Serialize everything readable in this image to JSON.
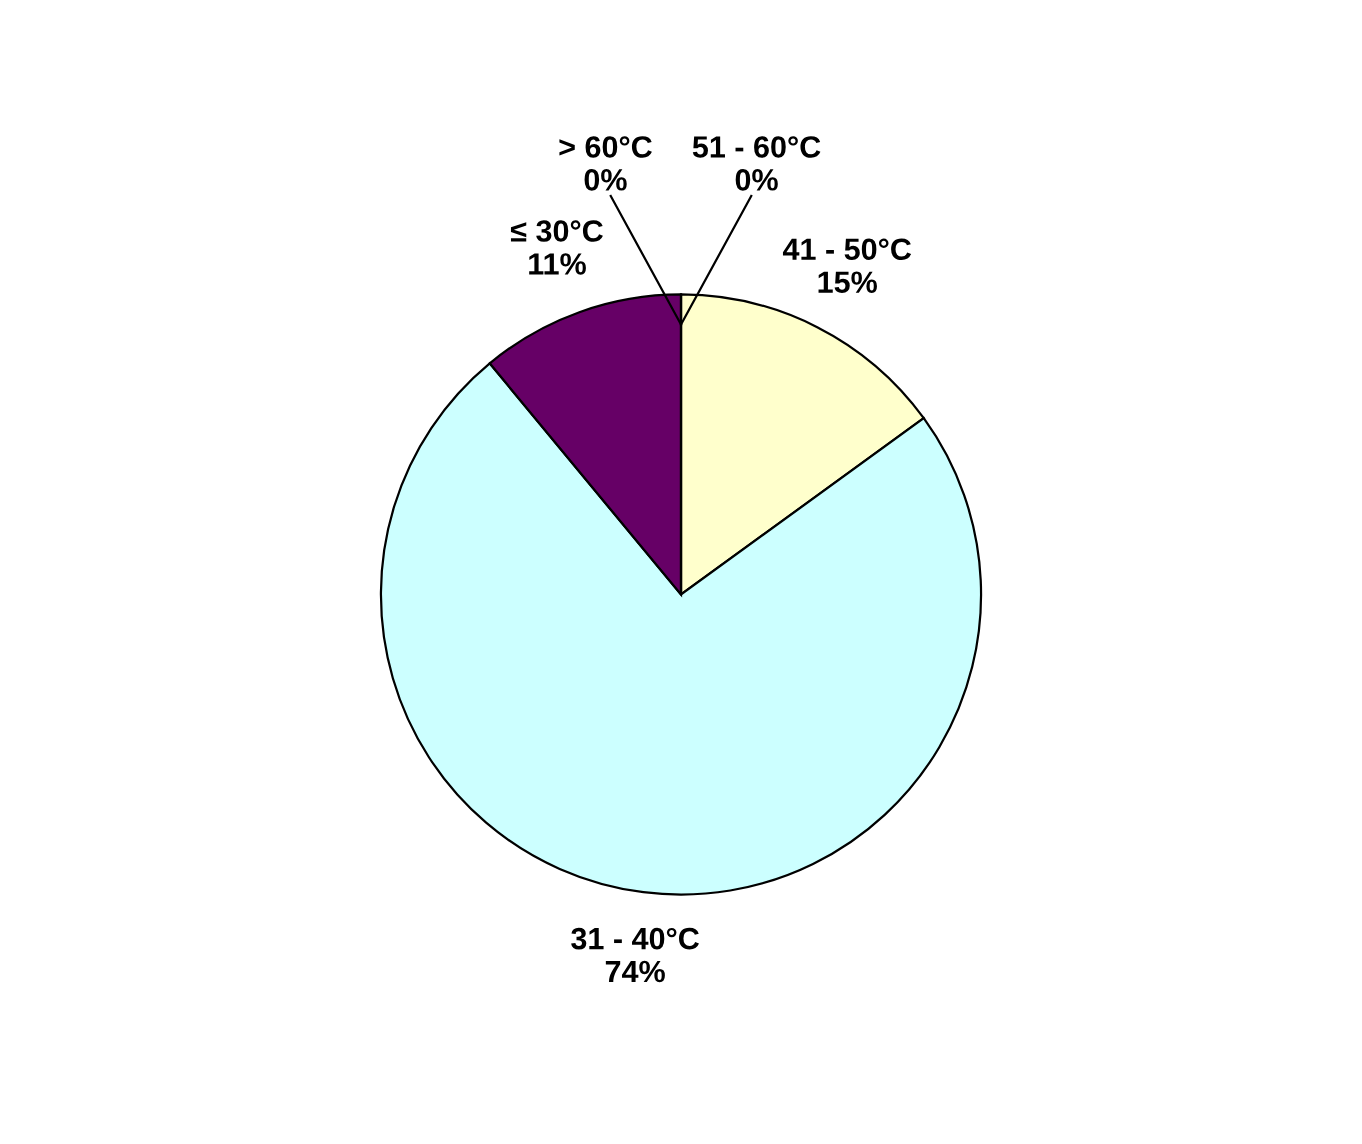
{
  "chart_data": {
    "type": "pie",
    "categories": [
      "51 - 60°C",
      "41 - 50°C",
      "31 - 40°C",
      "≤ 30°C",
      "> 60°C"
    ],
    "values": [
      0,
      15,
      74,
      11,
      0
    ],
    "value_labels": [
      "0%",
      "15%",
      "74%",
      "11%",
      "0%"
    ],
    "colors": [
      "#ffffff",
      "#ffffcc",
      "#ccffff",
      "#660066",
      "#ffffff"
    ],
    "legend": false
  }
}
